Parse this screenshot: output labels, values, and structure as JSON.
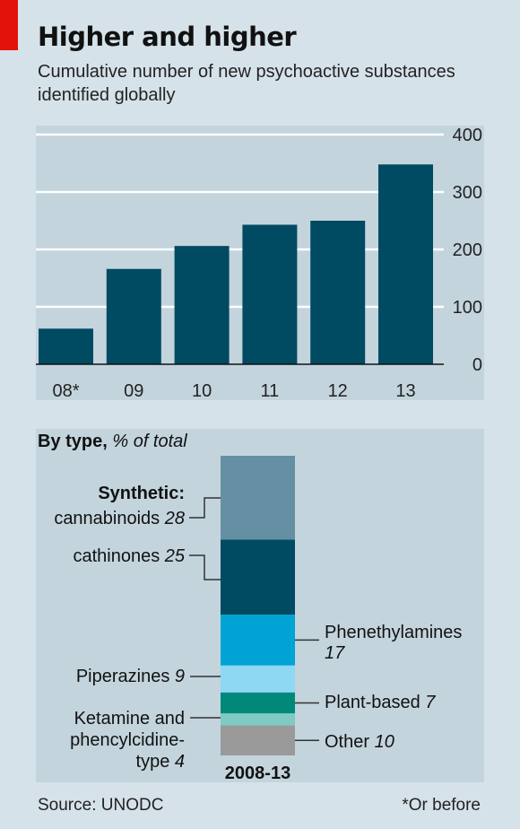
{
  "header": {
    "title": "Higher and higher",
    "subtitle": "Cumulative number of new psychoactive substances identified globally"
  },
  "chart_data": [
    {
      "type": "bar",
      "categories": [
        "08*",
        "09",
        "10",
        "11",
        "12",
        "13"
      ],
      "values": [
        62,
        166,
        206,
        243,
        250,
        348
      ],
      "ylim": [
        0,
        400
      ],
      "yticks": [
        0,
        100,
        200,
        300,
        400
      ],
      "grid": true,
      "bar_color": "#004a62"
    },
    {
      "type": "bar",
      "stacked": true,
      "title_bold": "By type,",
      "title_italic": "% of total",
      "category": "2008-13",
      "group_label": "Synthetic:",
      "segments": [
        {
          "name": "cannabinoids",
          "value": 28,
          "color": "#6590a3"
        },
        {
          "name": "cathinones",
          "value": 25,
          "color": "#004a62"
        },
        {
          "name": "Phenethylamines",
          "value": 17,
          "color": "#00a3d4"
        },
        {
          "name": "Piperazines",
          "value": 9,
          "color": "#8ed8f3"
        },
        {
          "name": "Plant-based",
          "value": 7,
          "color": "#00897b"
        },
        {
          "name": "Ketamine and phencylcidine-type",
          "value": 4,
          "color": "#7fcbc4"
        },
        {
          "name": "Other",
          "value": 10,
          "color": "#9a9a9a"
        }
      ]
    }
  ],
  "footer": {
    "source": "Source: UNODC",
    "note": "*Or before"
  }
}
